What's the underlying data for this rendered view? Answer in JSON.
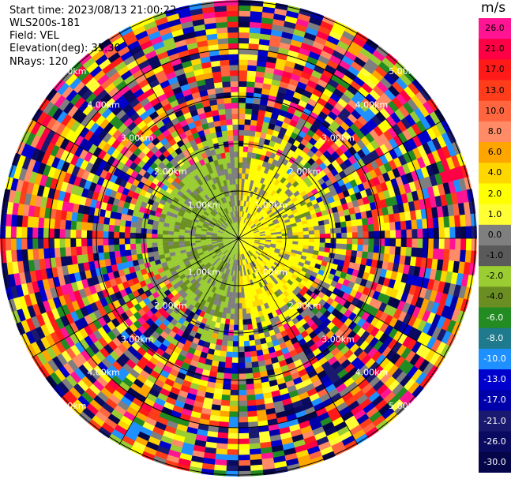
{
  "header": {
    "start_time": "Start time: 2023/08/13 21:00:22",
    "instrument": "WLS200s-181",
    "field": "Field: VEL",
    "elevation": "Elevation(deg): 35.30",
    "nrays": "NRays: 120"
  },
  "colorbar": {
    "unit": "m/s",
    "ticks": [
      "26.0",
      "21.0",
      "17.0",
      "13.0",
      "10.0",
      "8.0",
      "6.0",
      "4.0",
      "2.0",
      "1.0",
      "0.0",
      "-1.0",
      "-2.0",
      "-4.0",
      "-6.0",
      "-8.0",
      "-10.0",
      "-13.0",
      "-17.0",
      "-21.0",
      "-26.0",
      "-30.0"
    ],
    "colors": [
      "#ff1493",
      "#ff0044",
      "#ff1a1a",
      "#ff3d1a",
      "#ff6640",
      "#ff8c66",
      "#ffa500",
      "#ffd700",
      "#ffff00",
      "#ffff33",
      "#7f7f7f",
      "#5a5a5a",
      "#9acd32",
      "#6b8e23",
      "#228b22",
      "#1e7a8c",
      "#1e90ff",
      "#0000cd",
      "#0000aa",
      "#191970",
      "#0a0a60",
      "#05054a"
    ]
  },
  "chart_data": {
    "type": "heatmap",
    "projection": "polar PPI scan",
    "field": "VEL",
    "units": "m/s",
    "nrays": 120,
    "elevation_deg": 35.3,
    "start_time": "2023/08/13 21:00:22",
    "color_range": [
      -30.0,
      26.0
    ],
    "range_ring_labels": [
      "1.00km",
      "2.00km",
      "3.00km",
      "4.00km",
      "5.00km"
    ],
    "center_region": {
      "description_fields": {
        "positive_sector": "yellow 2.0–4.0 m/s toward east/north-east",
        "negative_sector": "olive/green -1.0 to -4.0 m/s toward west/south-west"
      }
    }
  }
}
